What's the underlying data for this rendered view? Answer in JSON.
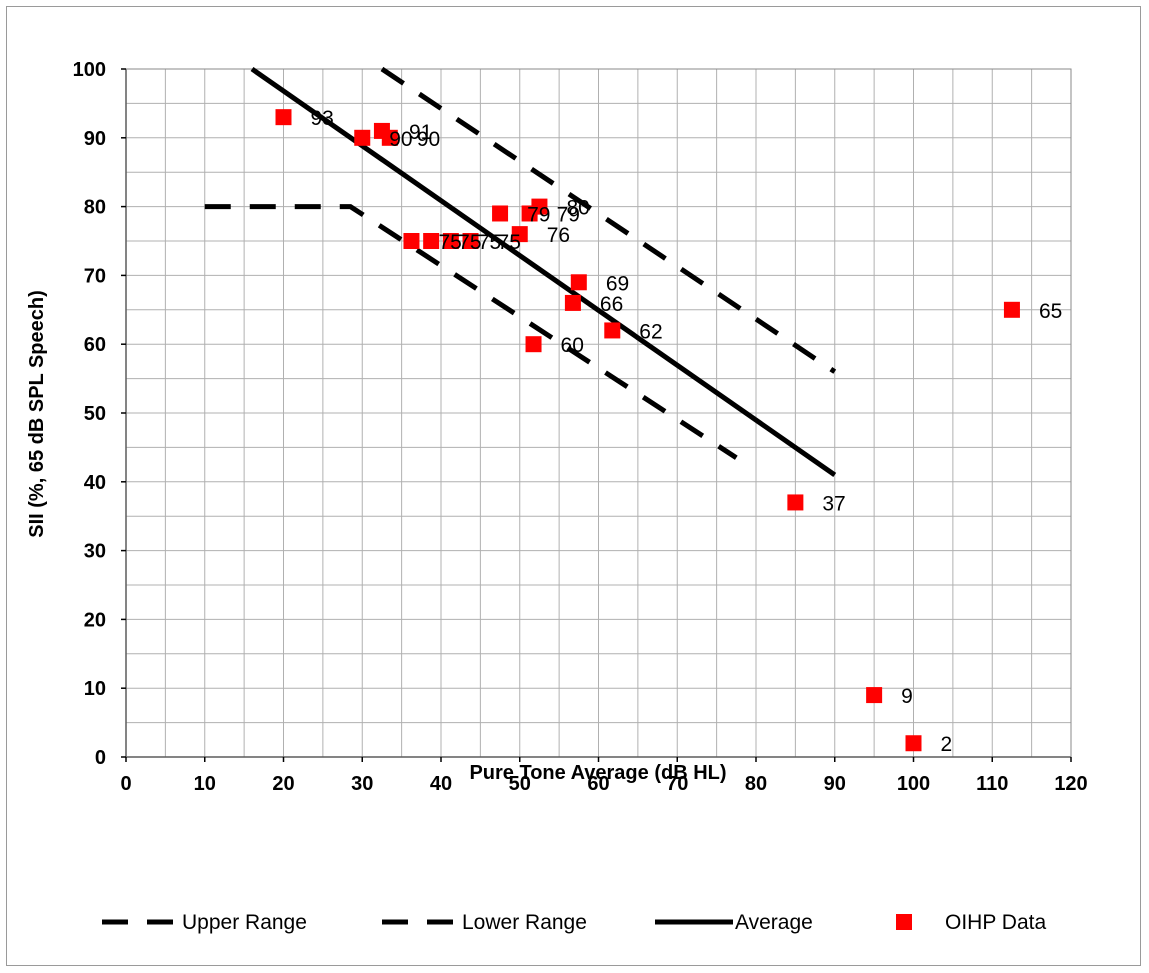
{
  "chart_data": {
    "type": "scatter",
    "title": "",
    "xlabel": "Pure Tone Average (dB HL)",
    "ylabel": "SII (%, 65 dB SPL Speech)",
    "xlim": [
      0,
      120
    ],
    "ylim": [
      0,
      100
    ],
    "x_ticks": [
      0,
      10,
      20,
      30,
      40,
      50,
      60,
      70,
      80,
      90,
      100,
      110,
      120
    ],
    "y_ticks": [
      0,
      10,
      20,
      30,
      40,
      50,
      60,
      70,
      80,
      90,
      100
    ],
    "x_minor_step": 5,
    "y_minor_step": 5,
    "grid": true,
    "legend_position": "bottom",
    "series": [
      {
        "name": "Upper Range",
        "type": "line",
        "style": "dashed",
        "color": "#000000",
        "points": [
          [
            32.5,
            100
          ],
          [
            90,
            56
          ]
        ]
      },
      {
        "name": "Lower Range",
        "type": "line",
        "style": "dashed",
        "color": "#000000",
        "points": [
          [
            10,
            80
          ],
          [
            28.5,
            80
          ],
          [
            77.5,
            43.5
          ]
        ]
      },
      {
        "name": "Average",
        "type": "line",
        "style": "solid",
        "color": "#000000",
        "points": [
          [
            16,
            100
          ],
          [
            90,
            41
          ]
        ]
      },
      {
        "name": "OIHP Data",
        "type": "scatter",
        "marker": "square",
        "color": "#ff0000",
        "points": [
          {
            "x": 20,
            "y": 93,
            "label": "93"
          },
          {
            "x": 30,
            "y": 90,
            "label": "90"
          },
          {
            "x": 32.5,
            "y": 91,
            "label": "91"
          },
          {
            "x": 33.5,
            "y": 90,
            "label": "90"
          },
          {
            "x": 36.25,
            "y": 75,
            "label": "75"
          },
          {
            "x": 38.75,
            "y": 75,
            "label": "75"
          },
          {
            "x": 41.25,
            "y": 75,
            "label": "75"
          },
          {
            "x": 43.75,
            "y": 75,
            "label": "75"
          },
          {
            "x": 47.5,
            "y": 79,
            "label": "79"
          },
          {
            "x": 50,
            "y": 76,
            "label": "76"
          },
          {
            "x": 51.25,
            "y": 79,
            "label": "79"
          },
          {
            "x": 51.75,
            "y": 60,
            "label": "60"
          },
          {
            "x": 52.5,
            "y": 80,
            "label": "80"
          },
          {
            "x": 56.75,
            "y": 66,
            "label": "66"
          },
          {
            "x": 57.5,
            "y": 69,
            "label": "69"
          },
          {
            "x": 61.75,
            "y": 62,
            "label": "62"
          },
          {
            "x": 85,
            "y": 37,
            "label": "37"
          },
          {
            "x": 95,
            "y": 9,
            "label": "9"
          },
          {
            "x": 100,
            "y": 2,
            "label": "2"
          },
          {
            "x": 112.5,
            "y": 65,
            "label": "65"
          }
        ]
      }
    ]
  }
}
